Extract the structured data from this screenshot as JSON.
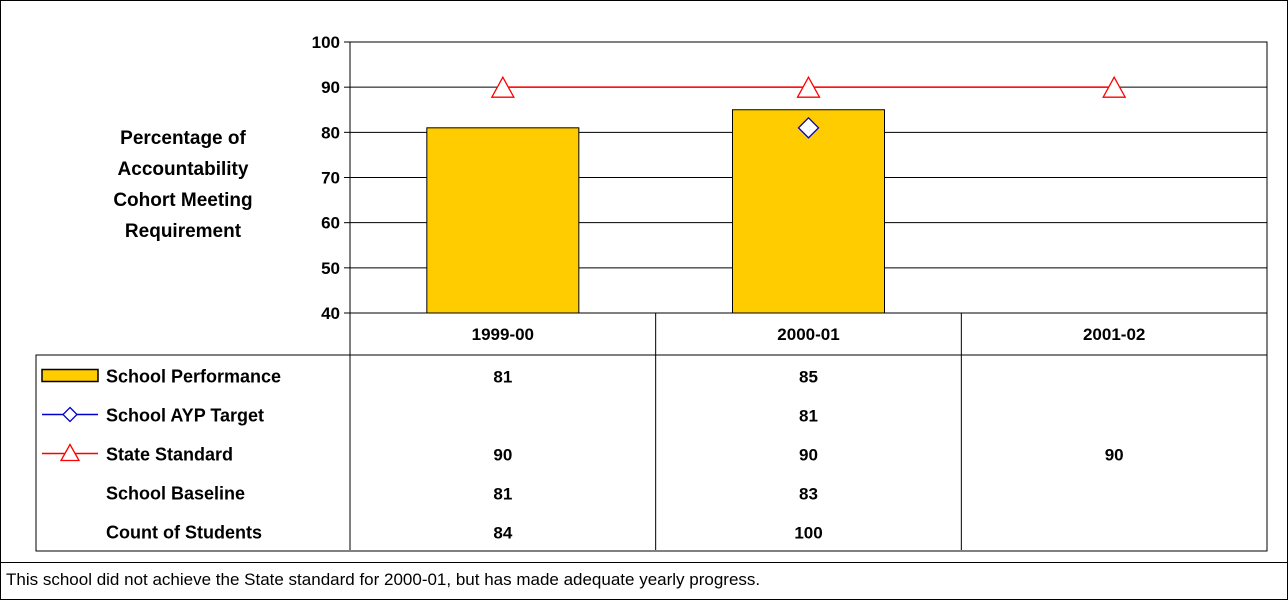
{
  "chart_data": {
    "type": "bar",
    "ylabel": "Percentage of Accountability Cohort Meeting Requirement",
    "ylabel_lines": [
      "Percentage of",
      "Accountability",
      "Cohort Meeting",
      "Requirement"
    ],
    "ylim": [
      40,
      100
    ],
    "yticks": [
      40,
      50,
      60,
      70,
      80,
      90,
      100
    ],
    "grid": true,
    "categories": [
      "1999-00",
      "2000-01",
      "2001-02"
    ],
    "series": [
      {
        "name": "School Performance",
        "kind": "bar",
        "color": "#FFCC00",
        "values": [
          81,
          85,
          null
        ]
      },
      {
        "name": "School AYP Target",
        "kind": "marker-diamond",
        "color": "#0000CC",
        "values": [
          null,
          81,
          null
        ]
      },
      {
        "name": "State Standard",
        "kind": "line-triangle",
        "color": "#FF0000",
        "values": [
          90,
          90,
          90
        ]
      }
    ],
    "table_rows": [
      {
        "label": "School Performance",
        "marker": "bar",
        "display": [
          "81",
          "85",
          ""
        ]
      },
      {
        "label": "School AYP Target",
        "marker": "diamond",
        "display": [
          "",
          "81",
          ""
        ]
      },
      {
        "label": "State Standard",
        "marker": "triangle",
        "display": [
          "90",
          "90",
          "90"
        ]
      },
      {
        "label": "School Baseline",
        "marker": "none",
        "display": [
          "81",
          "83",
          ""
        ]
      },
      {
        "label": "Count of Students",
        "marker": "none",
        "display": [
          "84",
          "100",
          ""
        ]
      }
    ]
  },
  "footnote": "This school did not achieve the State standard for 2000-01, but has made adequate yearly progress."
}
